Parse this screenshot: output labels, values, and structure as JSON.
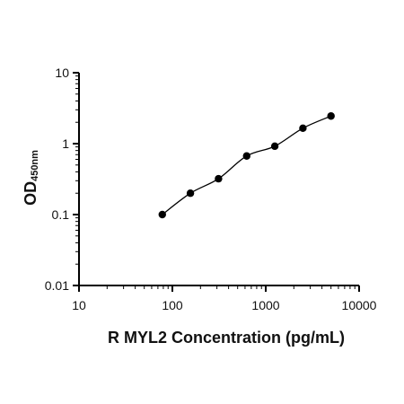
{
  "chart_data": {
    "type": "scatter",
    "title": "",
    "xlabel": "R MYL2 Concentration (pg/mL)",
    "ylabel": "OD",
    "ylabel_subscript": "450nm",
    "x_scale": "log",
    "y_scale": "log",
    "xlim": [
      10,
      10000
    ],
    "ylim": [
      0.01,
      10
    ],
    "x_ticks": [
      "10",
      "100",
      "1000",
      "10000"
    ],
    "y_ticks": [
      "0.01",
      "0.1",
      "1",
      "10"
    ],
    "grid": false,
    "legend": "none",
    "colors": {
      "points": "#000000",
      "fit_line": "#000000",
      "axes": "#000000"
    },
    "series": [
      {
        "x": [
          78,
          156,
          312,
          625,
          1250,
          2500,
          5000
        ],
        "y": [
          0.1,
          0.2,
          0.32,
          0.67,
          0.92,
          1.65,
          2.45
        ]
      }
    ],
    "fit_curve": "smooth"
  }
}
